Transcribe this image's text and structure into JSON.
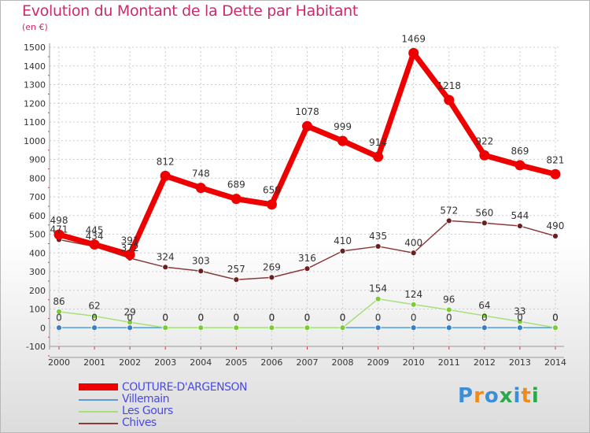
{
  "title": "Evolution du Montant de la Dette par Habitant",
  "unit": "(en €)",
  "logo": "Proxiti",
  "colors": {
    "title": "#cc2a6b",
    "legend_text": "#4a4adf",
    "axis_text": "#333333",
    "grid": "#cccccc",
    "axis_red": "#e23030"
  },
  "chart_data": {
    "type": "line",
    "title": "Evolution du Montant de la Dette par Habitant",
    "ylabel": "(en €)",
    "x": [
      "2000",
      "2001",
      "2002",
      "2003",
      "2004",
      "2005",
      "2006",
      "2007",
      "2008",
      "2009",
      "2010",
      "2011",
      "2012",
      "2013",
      "2014"
    ],
    "ylim": [
      -100,
      1500
    ],
    "yticks": [
      -100,
      0,
      100,
      200,
      300,
      400,
      500,
      600,
      700,
      800,
      900,
      1000,
      1100,
      1200,
      1300,
      1400,
      1500
    ],
    "grid": true,
    "legend_position": "bottom-left",
    "series": [
      {
        "name": "COUTURE-D'ARGENSON",
        "color": "#ee0000",
        "marker_color": "#ee0000",
        "width": 7,
        "marker_r": 6.5,
        "values": [
          498,
          445,
          391,
          812,
          748,
          689,
          659,
          1078,
          999,
          914,
          1469,
          1218,
          922,
          869,
          821
        ],
        "labels": [
          "498",
          "445",
          "391",
          "812",
          "748",
          "689",
          "659",
          "1078",
          "999",
          "914",
          "1469",
          "1218",
          "922",
          "869",
          "821"
        ]
      },
      {
        "name": "Villemain",
        "color": "#5b9bd5",
        "marker_color": "#3a7fc1",
        "width": 1.5,
        "marker_r": 3.5,
        "values": [
          0,
          0,
          0,
          0,
          0,
          0,
          0,
          0,
          0,
          0,
          0,
          0,
          0,
          0,
          0
        ],
        "labels": [
          "0",
          "0",
          "0",
          "0",
          "0",
          "0",
          "0",
          "0",
          "0",
          "0",
          "0",
          "0",
          "0",
          "0",
          "0"
        ]
      },
      {
        "name": "Les Gours",
        "color": "#a6e07a",
        "marker_color": "#7ccc3a",
        "width": 1.5,
        "marker_r": 3.5,
        "values": [
          86,
          62,
          29,
          0,
          0,
          0,
          0,
          0,
          0,
          154,
          124,
          96,
          64,
          33,
          0
        ],
        "labels": [
          "86",
          "62",
          "29",
          "0",
          "0",
          "0",
          "0",
          "0",
          "0",
          "154",
          "124",
          "96",
          "64",
          "33",
          "0"
        ]
      },
      {
        "name": "Chives",
        "color": "#8b3a3a",
        "marker_color": "#6b1f1f",
        "width": 1.5,
        "marker_r": 3.5,
        "values": [
          471,
          434,
          372,
          324,
          303,
          257,
          269,
          316,
          410,
          435,
          400,
          572,
          560,
          544,
          490
        ],
        "labels": [
          "471",
          "434",
          "372",
          "324",
          "303",
          "257",
          "269",
          "316",
          "410",
          "435",
          "400",
          "572",
          "560",
          "544",
          "490"
        ]
      }
    ]
  }
}
